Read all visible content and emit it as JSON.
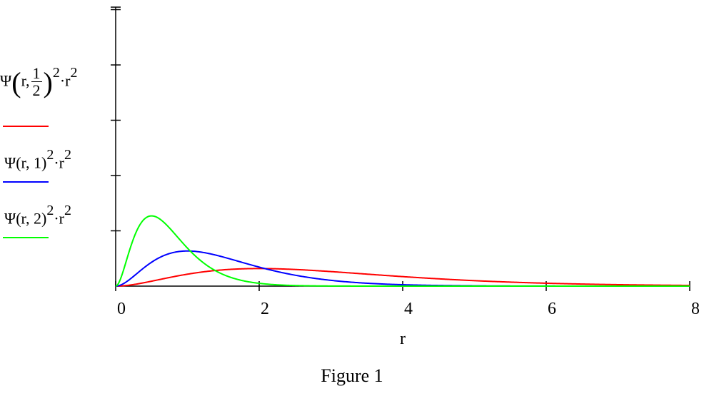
{
  "chart_data": {
    "type": "line",
    "xlabel": "r",
    "xlim": [
      0,
      8
    ],
    "ylim": [
      0,
      4.3
    ],
    "x_ticks": [
      "0",
      "2",
      "4",
      "6",
      "8"
    ],
    "y_ticks_count": 5,
    "grid": false,
    "legend_placement": "left",
    "series": [
      {
        "name": "Ψ(r, 1/2)^2 · r^2",
        "color": "#ff0000",
        "zeta": 0.5
      },
      {
        "name": "Ψ(r, 1)^2 · r^2",
        "color": "#0000ff",
        "zeta": 1
      },
      {
        "name": "Ψ(r, 2)^2 · r^2",
        "color": "#00ff00",
        "zeta": 2
      }
    ]
  },
  "legend": {
    "item1": {
      "psi": "Ψ",
      "arg": "r,",
      "num": "1",
      "den": "2",
      "pow": "2",
      "dot": "·",
      "r": "r",
      "pow2": "2"
    },
    "item2": {
      "text": "Ψ(r, 1)",
      "pow": "2",
      "dot": "·r",
      "pow2": "2"
    },
    "item3": {
      "text": "Ψ(r, 2)",
      "pow": "2",
      "dot": "·r",
      "pow2": "2"
    }
  },
  "caption": "Figure 1"
}
